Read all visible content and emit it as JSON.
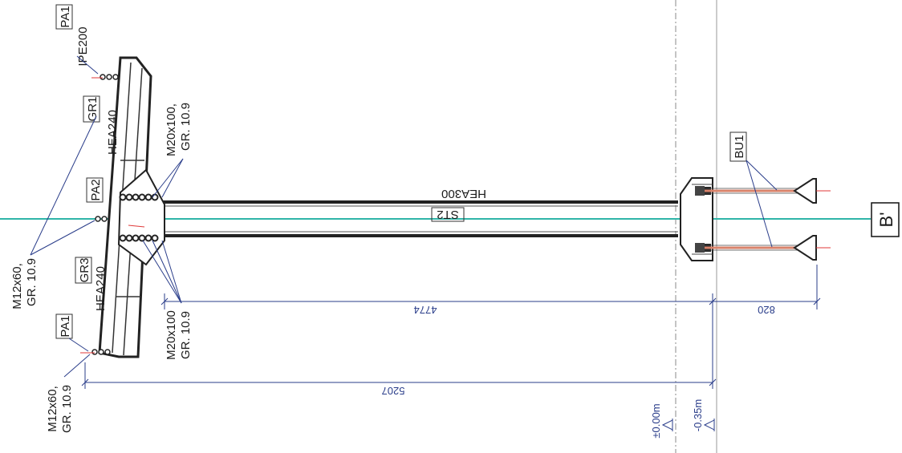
{
  "labels": {
    "pa1_top": "PA1",
    "ipe200": "IPE200",
    "gr1": "GR1",
    "hea240_top": "HEA240",
    "pa2": "PA2",
    "m20_top_line1": "M20x100,",
    "m20_top_line2": "GR. 10.9",
    "hea300": "HEA300",
    "st2": "ST2",
    "bu1": "BU1",
    "b_prime": "B'",
    "m12_mid_line1": "M12x60,",
    "m12_mid_line2": "GR. 10.9",
    "gr3": "GR3",
    "hea240_bottom": "HEA240",
    "pa1_bottom": "PA1",
    "m20_bot_line1": "M20x100",
    "m20_bot_line2": "GR. 10.9",
    "m12_bot_line1": "M12x60,",
    "m12_bot_line2": "GR. 10.9",
    "level_zero": "±0.00m",
    "level_minus": "-0.35m"
  },
  "dimensions": {
    "beam_length": "4774",
    "anchor_length": "820",
    "total_length": "5207"
  },
  "colors": {
    "steel": "#2b2b2b",
    "axis_line": "#2fb5a8",
    "dimension": "#2a3d8a",
    "anchor_rod": "#d9826a",
    "bolt_marker": "#e03a3a"
  }
}
